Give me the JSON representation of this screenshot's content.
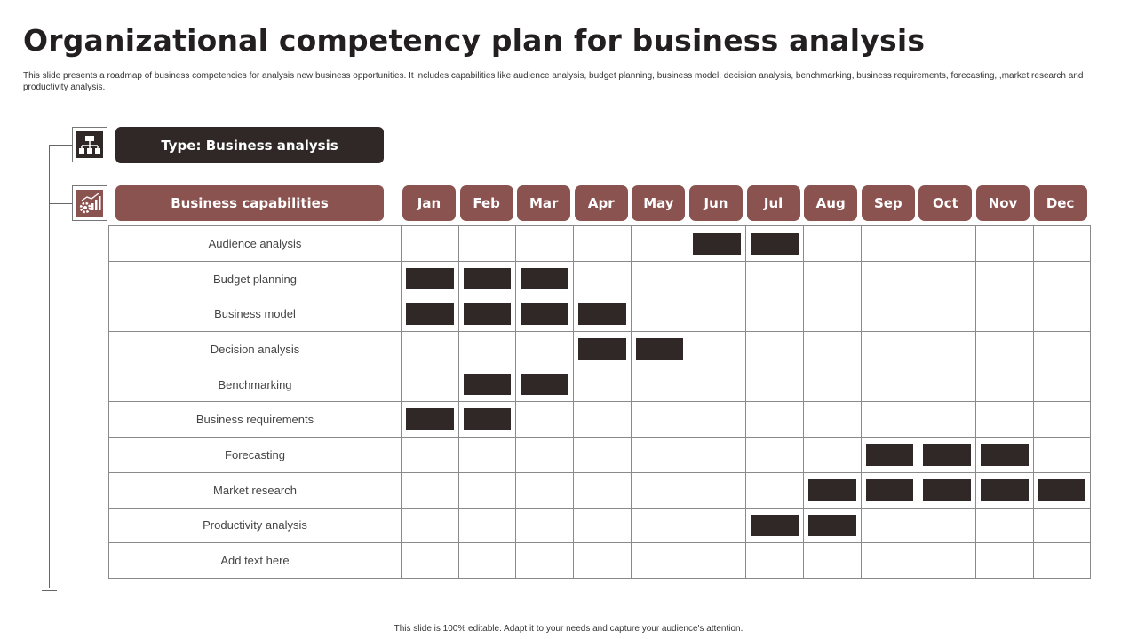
{
  "title": "Organizational competency plan for business analysis",
  "subtitle": "This slide presents a roadmap  of business competencies for analysis new business opportunities. It includes capabilities like audience analysis, budget planning,  business model,  decision analysis, benchmarking, business requirements, forecasting, ,market research and productivity analysis.",
  "type_label": "Type: Business analysis",
  "capabilities_label": "Business capabilities",
  "icons": {
    "type": "organization-chart-icon",
    "capabilities": "gear-growth-chart-icon"
  },
  "colors": {
    "dark": "#2f2827",
    "accent": "#8b5350"
  },
  "months": [
    "Jan",
    "Feb",
    "Mar",
    "Apr",
    "May",
    "Jun",
    "Jul",
    "Aug",
    "Sep",
    "Oct",
    "Nov",
    "Dec"
  ],
  "rows": [
    {
      "label": "Audience analysis",
      "active": [
        "Jun",
        "Jul"
      ]
    },
    {
      "label": "Budget planning",
      "active": [
        "Jan",
        "Feb",
        "Mar"
      ]
    },
    {
      "label": "Business model",
      "active": [
        "Jan",
        "Feb",
        "Mar",
        "Apr"
      ]
    },
    {
      "label": "Decision analysis",
      "active": [
        "Apr",
        "May"
      ]
    },
    {
      "label": "Benchmarking",
      "active": [
        "Feb",
        "Mar"
      ]
    },
    {
      "label": "Business requirements",
      "active": [
        "Jan",
        "Feb"
      ]
    },
    {
      "label": "Forecasting",
      "active": [
        "Sep",
        "Oct",
        "Nov"
      ]
    },
    {
      "label": "Market research",
      "active": [
        "Aug",
        "Sep",
        "Oct",
        "Nov",
        "Dec"
      ]
    },
    {
      "label": "Productivity analysis",
      "active": [
        "Jul",
        "Aug"
      ]
    },
    {
      "label": "Add text here",
      "active": []
    }
  ],
  "footer": "This slide is 100% editable.  Adapt it to your needs and capture your audience's attention."
}
